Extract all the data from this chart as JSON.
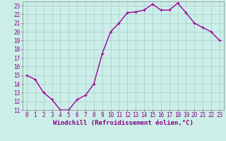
{
  "hours": [
    0,
    1,
    2,
    3,
    4,
    5,
    6,
    7,
    8,
    9,
    10,
    11,
    12,
    13,
    14,
    15,
    16,
    17,
    18,
    19,
    20,
    21,
    22,
    23
  ],
  "values": [
    15,
    14.5,
    13,
    12.2,
    11,
    11,
    12.2,
    12.7,
    14,
    17.5,
    20,
    21,
    22.2,
    22.3,
    22.5,
    23.2,
    22.5,
    22.5,
    23.3,
    22.2,
    21,
    20.5,
    20,
    19
  ],
  "line_color": "#990099",
  "marker": "+",
  "marker_size": 3,
  "bg_color": "#cceee8",
  "grid_color": "#aacccc",
  "xlabel": "Windchill (Refroidissement éolien,°C)",
  "xlim": [
    -0.5,
    23.5
  ],
  "ylim": [
    11,
    23.5
  ],
  "yticks": [
    11,
    12,
    13,
    14,
    15,
    16,
    17,
    18,
    19,
    20,
    21,
    22,
    23
  ],
  "xticks": [
    0,
    1,
    2,
    3,
    4,
    5,
    6,
    7,
    8,
    9,
    10,
    11,
    12,
    13,
    14,
    15,
    16,
    17,
    18,
    19,
    20,
    21,
    22,
    23
  ],
  "tick_fontsize": 5.5,
  "xlabel_fontsize": 6.5,
  "line_width": 1.0,
  "marker_edge_width": 0.8
}
